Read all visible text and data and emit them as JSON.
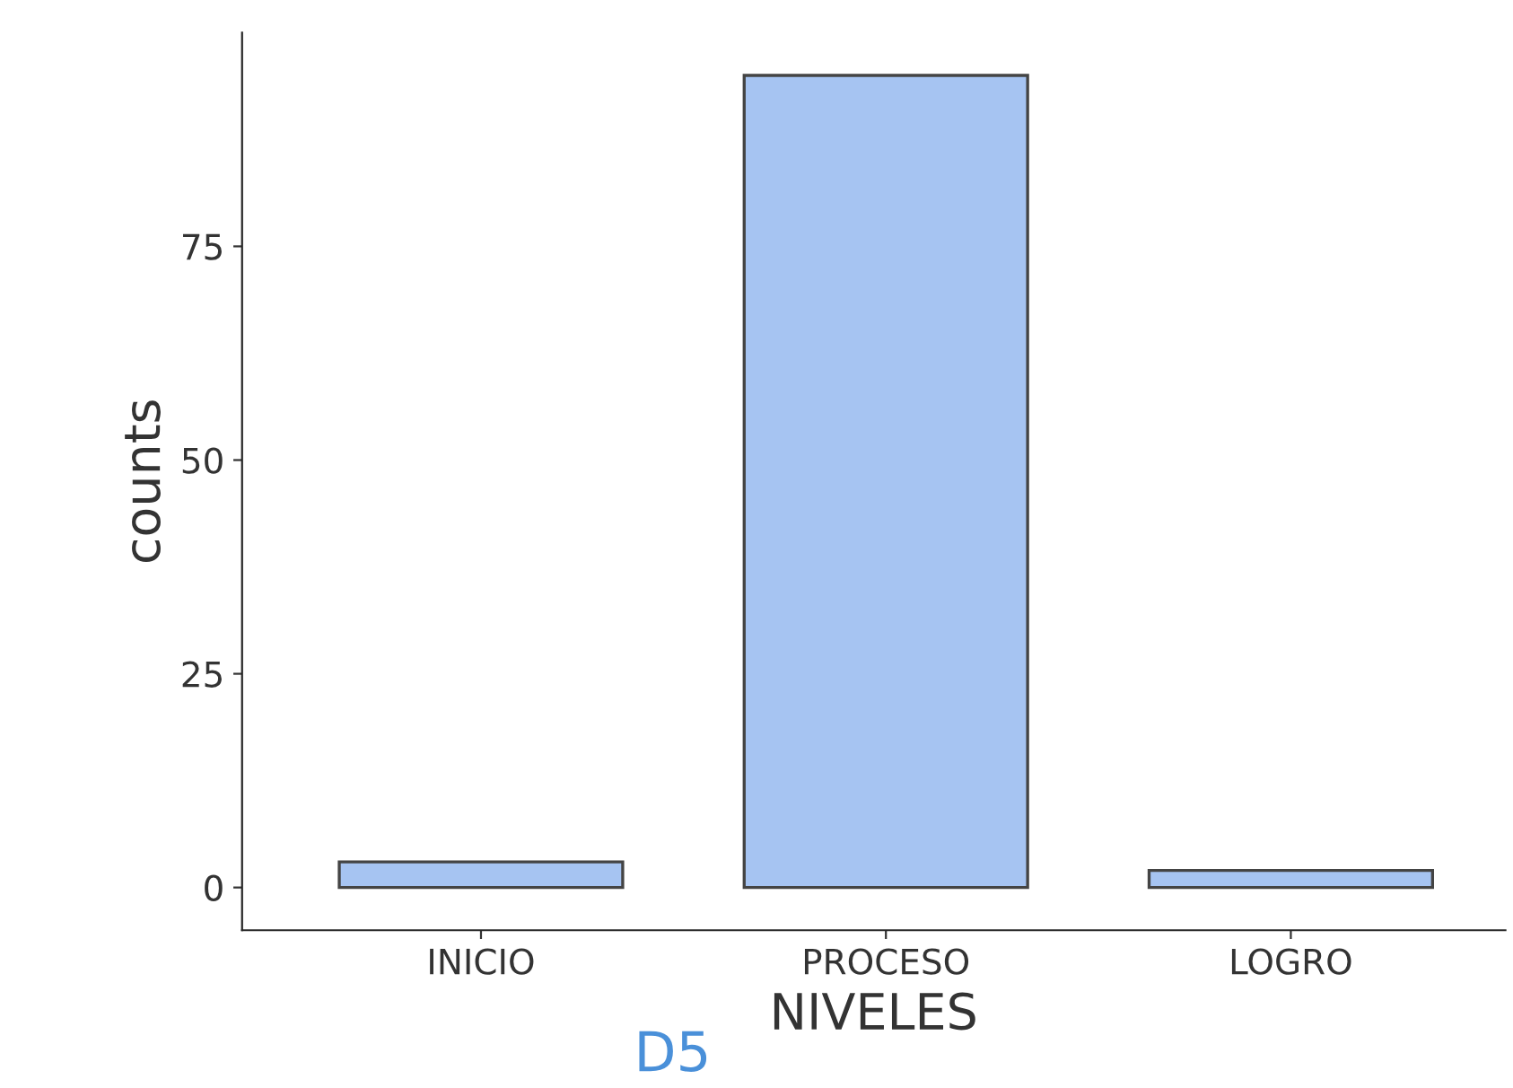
{
  "chart_data": {
    "type": "bar",
    "xlabel": "NIVELES",
    "ylabel": "counts",
    "annotations": [
      "D5"
    ],
    "categories": [
      "INICIO",
      "PROCESO",
      "LOGRO"
    ],
    "series": [
      {
        "color": "#a6c4f2",
        "values": [
          3,
          95,
          2
        ]
      }
    ],
    "ylim": [
      -5,
      100
    ],
    "yticks": [
      0,
      25,
      50,
      75
    ],
    "grid": false,
    "legend": false
  }
}
